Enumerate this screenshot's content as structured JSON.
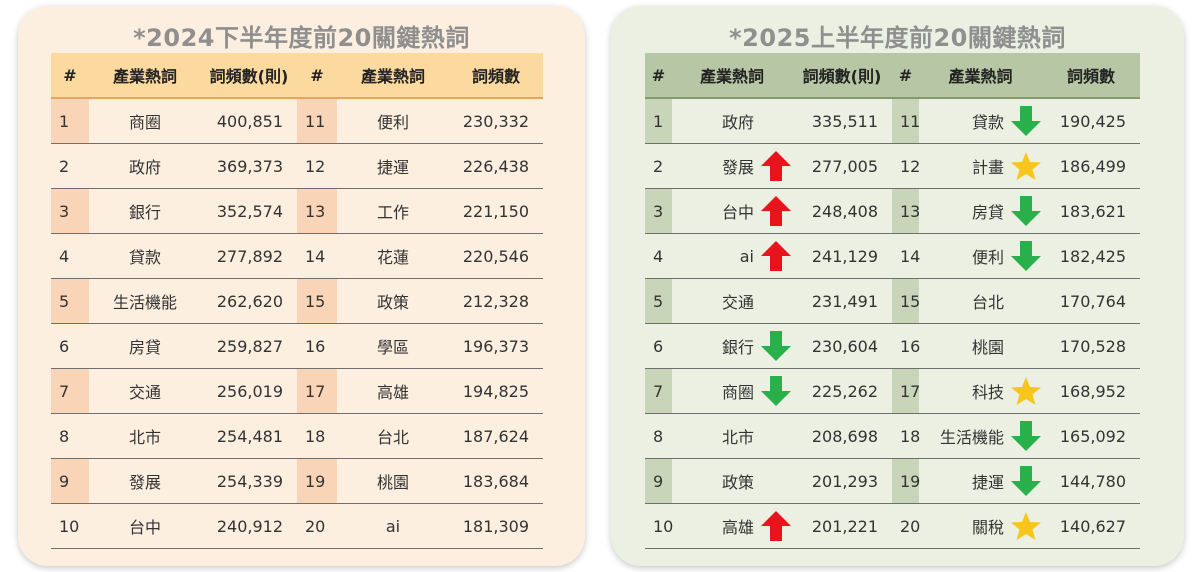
{
  "colors": {
    "up": "#e8131b",
    "down": "#2ab04a",
    "new": "#f7c51b"
  },
  "left": {
    "title": "*2024下半年度前20關鍵熱詞",
    "headers": {
      "rank": "#",
      "name": "產業熱詞",
      "count": "詞頻數(則)",
      "rank2": "#",
      "name2": "產業熱詞",
      "count2": "詞頻數"
    },
    "rows": [
      {
        "r1": "1",
        "n1": "商圈",
        "c1": "400,851",
        "r2": "11",
        "n2": "便利",
        "c2": "230,332"
      },
      {
        "r1": "2",
        "n1": "政府",
        "c1": "369,373",
        "r2": "12",
        "n2": "捷運",
        "c2": "226,438"
      },
      {
        "r1": "3",
        "n1": "銀行",
        "c1": "352,574",
        "r2": "13",
        "n2": "工作",
        "c2": "221,150"
      },
      {
        "r1": "4",
        "n1": "貸款",
        "c1": "277,892",
        "r2": "14",
        "n2": "花蓮",
        "c2": "220,546"
      },
      {
        "r1": "5",
        "n1": "生活機能",
        "c1": "262,620",
        "r2": "15",
        "n2": "政策",
        "c2": "212,328"
      },
      {
        "r1": "6",
        "n1": "房貸",
        "c1": "259,827",
        "r2": "16",
        "n2": "學區",
        "c2": "196,373"
      },
      {
        "r1": "7",
        "n1": "交通",
        "c1": "256,019",
        "r2": "17",
        "n2": "高雄",
        "c2": "194,825"
      },
      {
        "r1": "8",
        "n1": "北市",
        "c1": "254,481",
        "r2": "18",
        "n2": "台北",
        "c2": "187,624"
      },
      {
        "r1": "9",
        "n1": "發展",
        "c1": "254,339",
        "r2": "19",
        "n2": "桃園",
        "c2": "183,684"
      },
      {
        "r1": "10",
        "n1": "台中",
        "c1": "240,912",
        "r2": "20",
        "n2": "ai",
        "c2": "181,309"
      }
    ]
  },
  "right": {
    "title": "*2025上半年度前20關鍵熱詞",
    "headers": {
      "rank": "#",
      "name": "產業熱詞",
      "count": "詞頻數(則)",
      "rank2": "#",
      "name2": "產業熱詞",
      "count2": "詞頻數"
    },
    "rows": [
      {
        "r1": "1",
        "n1": "政府",
        "m1": "none",
        "c1": "335,511",
        "r2": "11",
        "n2": "貸款",
        "m2": "down",
        "c2": "190,425"
      },
      {
        "r1": "2",
        "n1": "發展",
        "m1": "up",
        "c1": "277,005",
        "r2": "12",
        "n2": "計畫",
        "m2": "new",
        "c2": "186,499"
      },
      {
        "r1": "3",
        "n1": "台中",
        "m1": "up",
        "c1": "248,408",
        "r2": "13",
        "n2": "房貸",
        "m2": "down",
        "c2": "183,621"
      },
      {
        "r1": "4",
        "n1": "ai",
        "m1": "up",
        "c1": "241,129",
        "r2": "14",
        "n2": "便利",
        "m2": "down",
        "c2": "182,425"
      },
      {
        "r1": "5",
        "n1": "交通",
        "m1": "none",
        "c1": "231,491",
        "r2": "15",
        "n2": "台北",
        "m2": "none",
        "c2": "170,764"
      },
      {
        "r1": "6",
        "n1": "銀行",
        "m1": "down",
        "c1": "230,604",
        "r2": "16",
        "n2": "桃園",
        "m2": "none",
        "c2": "170,528"
      },
      {
        "r1": "7",
        "n1": "商圈",
        "m1": "down",
        "c1": "225,262",
        "r2": "17",
        "n2": "科技",
        "m2": "new",
        "c2": "168,952"
      },
      {
        "r1": "8",
        "n1": "北市",
        "m1": "none",
        "c1": "208,698",
        "r2": "18",
        "n2": "生活機能",
        "m2": "down",
        "c2": "165,092"
      },
      {
        "r1": "9",
        "n1": "政策",
        "m1": "none",
        "c1": "201,293",
        "r2": "19",
        "n2": "捷運",
        "m2": "down",
        "c2": "144,780"
      },
      {
        "r1": "10",
        "n1": "高雄",
        "m1": "up",
        "c1": "201,221",
        "r2": "20",
        "n2": "關稅",
        "m2": "new",
        "c2": "140,627"
      }
    ]
  }
}
